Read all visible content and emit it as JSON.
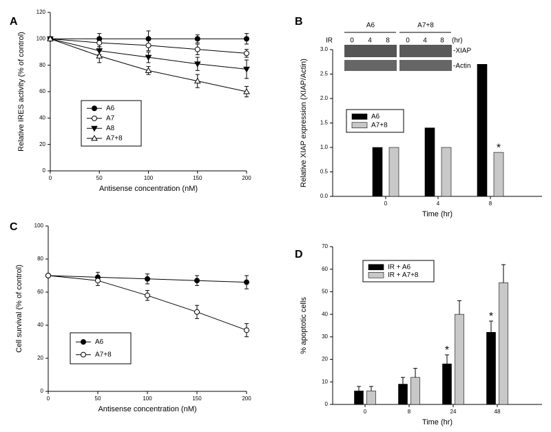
{
  "chart_data": [
    {
      "type": "line",
      "panel": "A",
      "xlabel": "Antisense concentration (nM)",
      "ylabel": "Relative IRES activity (% of control)",
      "x": [
        0,
        50,
        100,
        150,
        200
      ],
      "xlim": [
        0,
        200
      ],
      "xticks": [
        0,
        50,
        100,
        150,
        200
      ],
      "ylim": [
        0,
        120
      ],
      "yticks": [
        0,
        20,
        40,
        60,
        80,
        100,
        120
      ],
      "series": [
        {
          "name": "A6",
          "color": "#000000",
          "marker": "filled-circle",
          "values": [
            100,
            100,
            100,
            100,
            100
          ],
          "errors": [
            0,
            4,
            6,
            3,
            4
          ]
        },
        {
          "name": "A7",
          "color": "#000000",
          "marker": "open-circle",
          "values": [
            100,
            97,
            95,
            92,
            89
          ],
          "errors": [
            0,
            3,
            4,
            4,
            3
          ]
        },
        {
          "name": "A8",
          "color": "#000000",
          "marker": "filled-triangle-down",
          "values": [
            100,
            91,
            86,
            81,
            77
          ],
          "errors": [
            0,
            3,
            4,
            5,
            7
          ]
        },
        {
          "name": "A7+8",
          "color": "#000000",
          "marker": "open-triangle-up",
          "values": [
            100,
            87,
            76,
            68,
            60
          ],
          "errors": [
            0,
            5,
            3,
            5,
            4
          ]
        }
      ]
    },
    {
      "type": "bar",
      "panel": "B",
      "xlabel": "Time (hr)",
      "ylabel": "Relative XIAP expression (XIAP/Actin)",
      "categories": [
        "0",
        "4",
        "8"
      ],
      "ylim": [
        0,
        3
      ],
      "yticks": [
        {
          "value": 0,
          "label": "0.0"
        },
        0.5,
        {
          "value": 1,
          "label": "1.0"
        },
        1.5,
        {
          "value": 2,
          "label": "2.0"
        },
        2.5,
        {
          "value": 3,
          "label": "3.0"
        }
      ],
      "series": [
        {
          "name": "A6",
          "color": "#000000",
          "values": [
            1,
            1.4,
            2.7
          ]
        },
        {
          "name": "A7+8",
          "color": "#c8c8c8",
          "values": [
            1,
            1,
            0.9
          ]
        }
      ],
      "annotations": [
        "*"
      ],
      "inset": {
        "groups": [
          "A6",
          "A7+8"
        ],
        "row_label": "IR",
        "lanes": [
          "0",
          "4",
          "8",
          "0",
          "4",
          "8"
        ],
        "unit": "(hr)",
        "bands": [
          "-XIAP",
          "-Actin"
        ]
      }
    },
    {
      "type": "line",
      "panel": "C",
      "xlabel": "Antisense concentration (nM)",
      "ylabel": "Cell survival (% of control)",
      "x": [
        0,
        50,
        100,
        150,
        200
      ],
      "xlim": [
        0,
        200
      ],
      "xticks": [
        0,
        50,
        100,
        150,
        200
      ],
      "ylim": [
        0,
        100
      ],
      "yticks": [
        0,
        20,
        40,
        60,
        80,
        100
      ],
      "series": [
        {
          "name": "A6",
          "color": "#000000",
          "marker": "filled-circle",
          "values": [
            70,
            69,
            68,
            67,
            66
          ],
          "errors": [
            0,
            3,
            3,
            3,
            4
          ]
        },
        {
          "name": "A7+8",
          "color": "#000000",
          "marker": "open-circle",
          "values": [
            70,
            67,
            58,
            48,
            37
          ],
          "errors": [
            0,
            3,
            3,
            4,
            4
          ]
        }
      ]
    },
    {
      "type": "bar",
      "panel": "D",
      "xlabel": "Time (hr)",
      "ylabel": "% apoptotic cells",
      "categories": [
        "0",
        "8",
        "24",
        "48"
      ],
      "ylim": [
        0,
        70
      ],
      "yticks": [
        0,
        10,
        20,
        30,
        40,
        50,
        60,
        70
      ],
      "series": [
        {
          "name": "IR + A6",
          "color": "#000000",
          "values": [
            6,
            9,
            18,
            32
          ],
          "errors": [
            2,
            3,
            4,
            5
          ]
        },
        {
          "name": "IR + A7+8",
          "color": "#c8c8c8",
          "values": [
            6,
            12,
            40,
            54
          ],
          "errors": [
            2,
            4,
            6,
            8
          ]
        }
      ],
      "annotations": [
        "*",
        "*"
      ]
    }
  ]
}
